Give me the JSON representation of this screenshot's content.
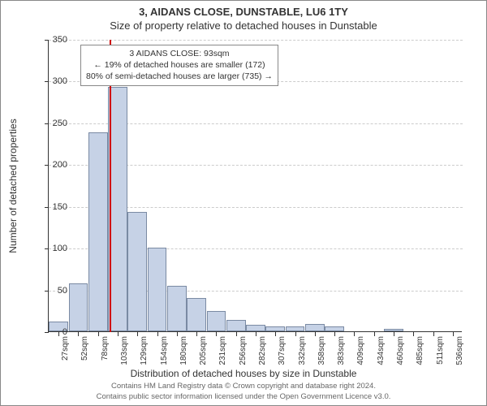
{
  "titles": {
    "main": "3, AIDANS CLOSE, DUNSTABLE, LU6 1TY",
    "sub": "Size of property relative to detached houses in Dunstable"
  },
  "axes": {
    "x_label": "Distribution of detached houses by size in Dunstable",
    "y_label": "Number of detached properties",
    "y_max": 350,
    "y_ticks": [
      0,
      50,
      100,
      150,
      200,
      250,
      300,
      350
    ],
    "x_categories": [
      "27sqm",
      "52sqm",
      "78sqm",
      "103sqm",
      "129sqm",
      "154sqm",
      "180sqm",
      "205sqm",
      "231sqm",
      "256sqm",
      "282sqm",
      "307sqm",
      "332sqm",
      "358sqm",
      "383sqm",
      "409sqm",
      "434sqm",
      "460sqm",
      "485sqm",
      "511sqm",
      "536sqm"
    ]
  },
  "chart": {
    "type": "histogram",
    "bar_fill": "#c6d2e6",
    "bar_stroke": "#7a8aa3",
    "grid_color": "#cccccc",
    "marker_color": "#d00000",
    "background": "#ffffff",
    "bar_values": [
      12,
      57,
      238,
      293,
      143,
      100,
      54,
      40,
      24,
      14,
      8,
      6,
      6,
      9,
      6,
      0,
      0,
      3,
      0,
      0,
      0
    ],
    "marker_sqm": 93,
    "x_min_sqm": 14,
    "x_max_sqm": 549
  },
  "annotation": {
    "line1": "3 AIDANS CLOSE: 93sqm",
    "line2": "← 19% of detached houses are smaller (172)",
    "line3": "80% of semi-detached houses are larger (735) →"
  },
  "footer": {
    "line1": "Contains HM Land Registry data © Crown copyright and database right 2024.",
    "line2": "Contains public sector information licensed under the Open Government Licence v3.0."
  }
}
